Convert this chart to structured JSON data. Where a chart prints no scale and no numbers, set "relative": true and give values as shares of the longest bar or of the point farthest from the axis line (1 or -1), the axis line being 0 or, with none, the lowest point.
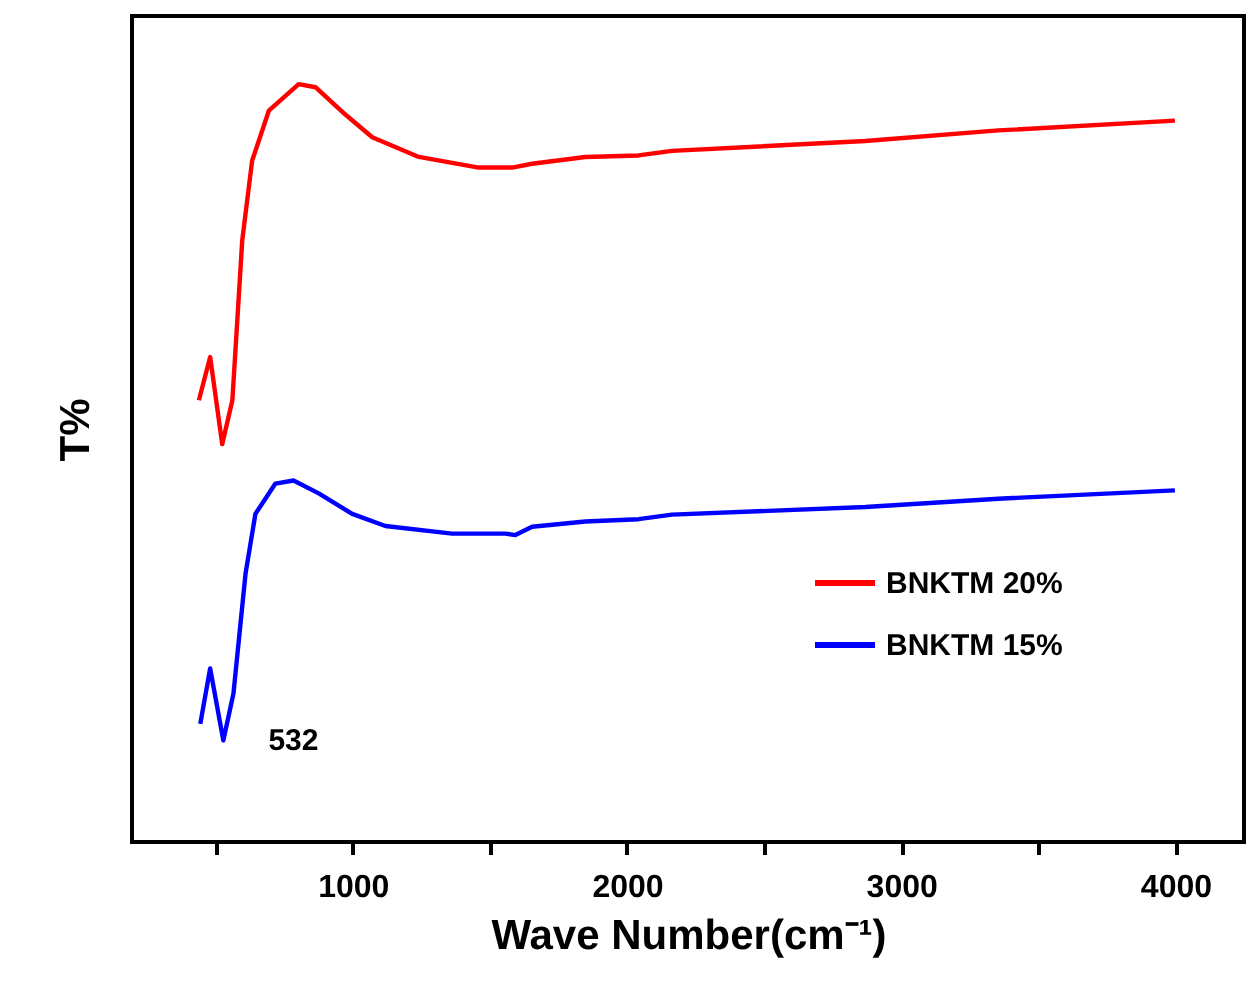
{
  "chart_data": {
    "type": "line",
    "relative": true,
    "xlabel": "Wave Number(cm⁻¹)",
    "ylabel": "T%",
    "xlim": [
      195,
      4250
    ],
    "xticks": [
      {
        "value": 500,
        "label": null
      },
      1000,
      {
        "value": 1500,
        "label": null
      },
      2000,
      {
        "value": 2500,
        "label": null
      },
      3000,
      {
        "value": 3500,
        "label": null
      },
      4000
    ],
    "legend": "bottom right",
    "grid": false,
    "marker": "none",
    "line_style": "solid",
    "annotations": [
      {
        "text": "532",
        "x": 532,
        "y": 0.134
      }
    ],
    "series": [
      {
        "name": "BNKTM 20%",
        "color": "#ff0000",
        "x": [
          439,
          480,
          524,
          561,
          597,
          633,
          694,
          803,
          864,
          973,
          1071,
          1241,
          1459,
          1581,
          1654,
          1848,
          2042,
          2164,
          2869,
          3354,
          3998
        ],
        "values": [
          0.583,
          0.64,
          0.525,
          0.583,
          0.794,
          0.899,
          0.965,
          1.0,
          0.996,
          0.96,
          0.93,
          0.904,
          0.89,
          0.89,
          0.895,
          0.904,
          0.906,
          0.912,
          0.925,
          0.939,
          0.952
        ]
      },
      {
        "name": "BNKTM 15%",
        "color": "#0000ff",
        "x": [
          444,
          480,
          528,
          565,
          609,
          645,
          718,
          784,
          876,
          998,
          1119,
          1362,
          1556,
          1593,
          1654,
          1848,
          2042,
          2164,
          2869,
          3354,
          3998
        ],
        "values": [
          0.156,
          0.229,
          0.134,
          0.196,
          0.354,
          0.433,
          0.473,
          0.477,
          0.46,
          0.433,
          0.417,
          0.407,
          0.407,
          0.405,
          0.416,
          0.423,
          0.426,
          0.432,
          0.442,
          0.453,
          0.464
        ]
      }
    ]
  }
}
